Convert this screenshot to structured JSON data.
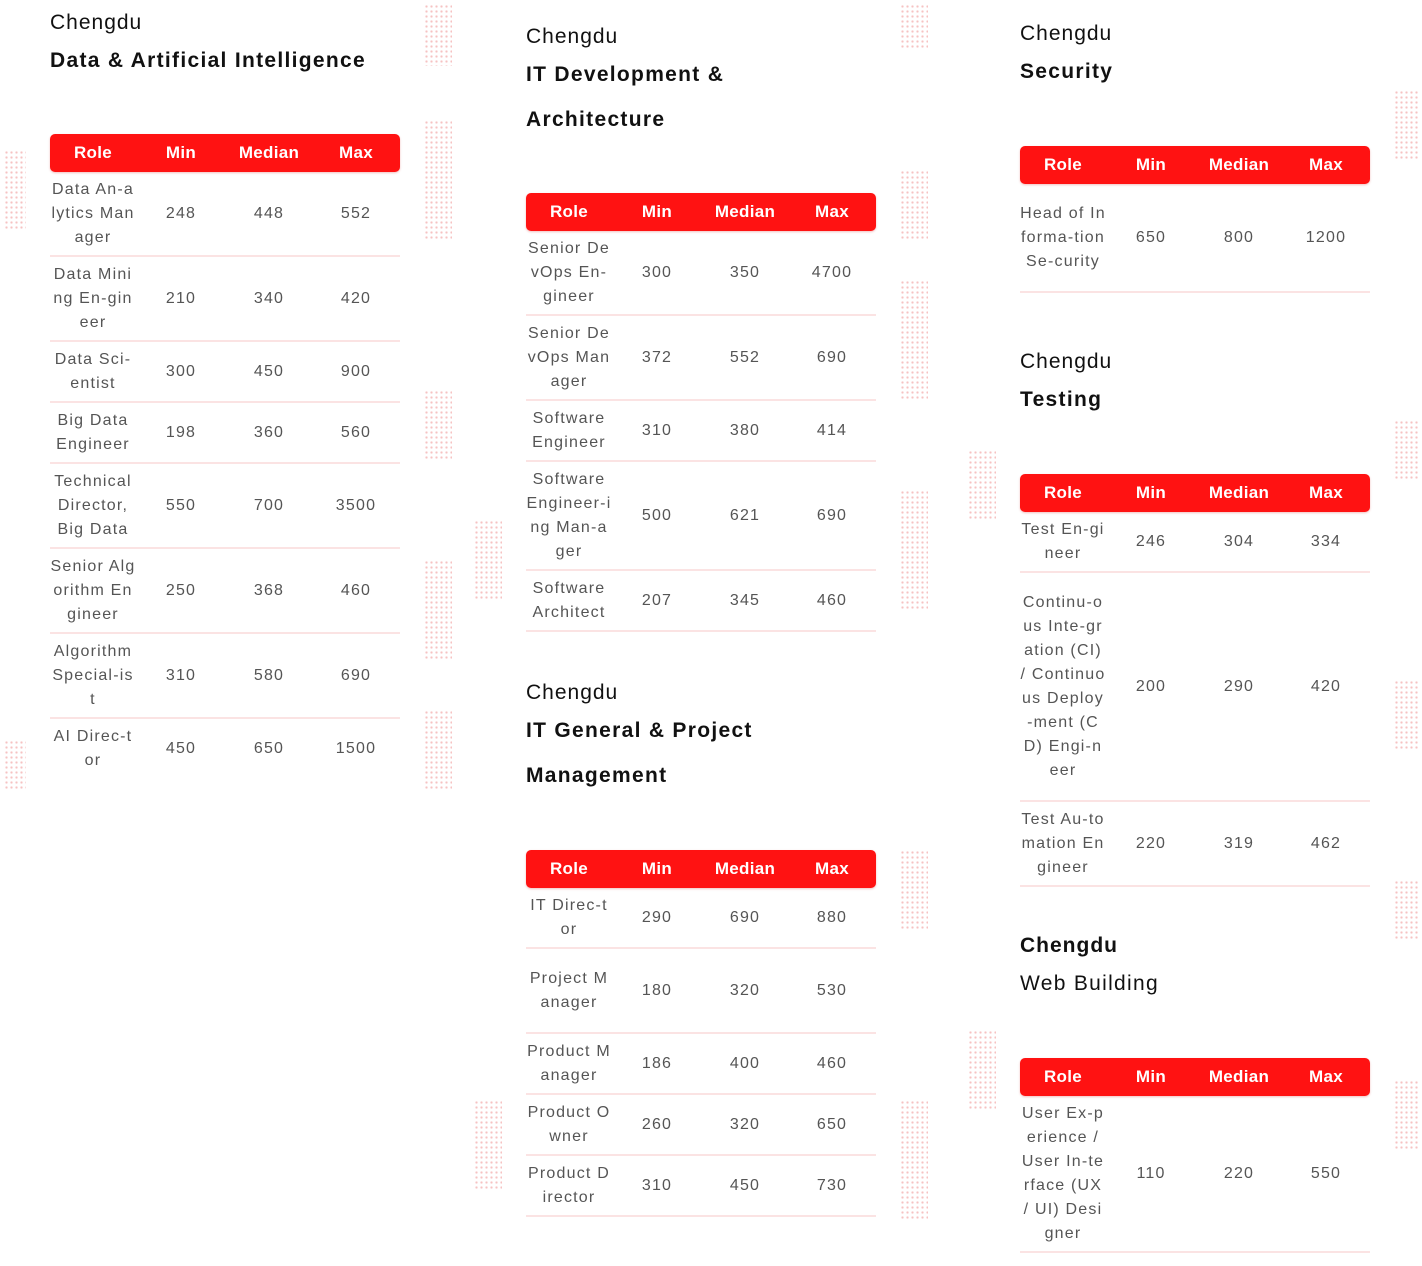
{
  "column1": {
    "sections": [
      {
        "city": "Chengdu",
        "category_lines": [
          "Data & Artificial Intelligence"
        ],
        "headers": [
          "Role",
          "Min",
          "Median",
          "Max"
        ],
        "rows": [
          {
            "role": "Data An-alytics Manager",
            "min": "248",
            "median": "448",
            "max": "552"
          },
          {
            "role": "Data Mining En-gineer",
            "min": "210",
            "median": "340",
            "max": "420"
          },
          {
            "role": "Data Sci-entist",
            "min": "300",
            "median": "450",
            "max": "900"
          },
          {
            "role": "Big Data Engineer",
            "min": "198",
            "median": "360",
            "max": "560"
          },
          {
            "role": "Technical Director, Big Data",
            "min": "550",
            "median": "700",
            "max": "3500"
          },
          {
            "role": "Senior Algorithm Engineer",
            "min": "250",
            "median": "368",
            "max": "460"
          },
          {
            "role": "Algorithm Special-ist",
            "min": "310",
            "median": "580",
            "max": "690"
          },
          {
            "role": "AI Direc-tor",
            "min": "450",
            "median": "650",
            "max": "1500"
          }
        ]
      }
    ]
  },
  "column2": {
    "sections": [
      {
        "city": "Chengdu",
        "category_lines": [
          "IT Development &",
          "Architecture"
        ],
        "headers": [
          "Role",
          "Min",
          "Median",
          "Max"
        ],
        "rows": [
          {
            "role": "Senior DevOps En-gineer",
            "min": "300",
            "median": "350",
            "max": "4700"
          },
          {
            "role": "Senior DevOps Manager",
            "min": "372",
            "median": "552",
            "max": "690"
          },
          {
            "role": "Software Engineer",
            "min": "310",
            "median": "380",
            "max": "414"
          },
          {
            "role": "Software Engineer-ing Man-ager",
            "min": "500",
            "median": "621",
            "max": "690"
          },
          {
            "role": "Software Architect",
            "min": "207",
            "median": "345",
            "max": "460"
          }
        ]
      },
      {
        "city": "Chengdu",
        "category_lines": [
          "IT General & Project",
          "Management"
        ],
        "headers": [
          "Role",
          "Min",
          "Median",
          "Max"
        ],
        "rows": [
          {
            "role": "IT Direc-tor",
            "min": "290",
            "median": "690",
            "max": "880"
          },
          {
            "role": "Project Manager",
            "min": "180",
            "median": "320",
            "max": "530"
          },
          {
            "role": "Product Manager",
            "min": "186",
            "median": "400",
            "max": "460"
          },
          {
            "role": "Product Owner",
            "min": "260",
            "median": "320",
            "max": "650"
          },
          {
            "role": "Product Director",
            "min": "310",
            "median": "450",
            "max": "730"
          }
        ]
      }
    ]
  },
  "column3": {
    "sections": [
      {
        "city": "Chengdu",
        "category_lines": [
          "Security"
        ],
        "headers": [
          "Role",
          "Min",
          "Median",
          "Max"
        ],
        "rows": [
          {
            "role": "Head of Informa-tion Se-curity",
            "min": "650",
            "median": "800",
            "max": "1200"
          }
        ]
      },
      {
        "city": "Chengdu",
        "category_lines": [
          "Testing"
        ],
        "headers": [
          "Role",
          "Min",
          "Median",
          "Max"
        ],
        "rows": [
          {
            "role": "Test En-gineer",
            "min": "246",
            "median": "304",
            "max": "334"
          },
          {
            "role": "Continu-ous Inte-gration (CI) / Continuous Deploy-ment (CD) Engi-neer",
            "min": "200",
            "median": "290",
            "max": "420"
          },
          {
            "role": "Test Au-tomation Engineer",
            "min": "220",
            "median": "319",
            "max": "462"
          }
        ]
      },
      {
        "city": "Chengdu",
        "category_lines": [
          "Web Building"
        ],
        "headers": [
          "Role",
          "Min",
          "Median",
          "Max"
        ],
        "rows": [
          {
            "role": "User Ex-perience / User In-terface (UX / UI) Designer",
            "min": "110",
            "median": "220",
            "max": "550"
          }
        ]
      }
    ]
  }
}
